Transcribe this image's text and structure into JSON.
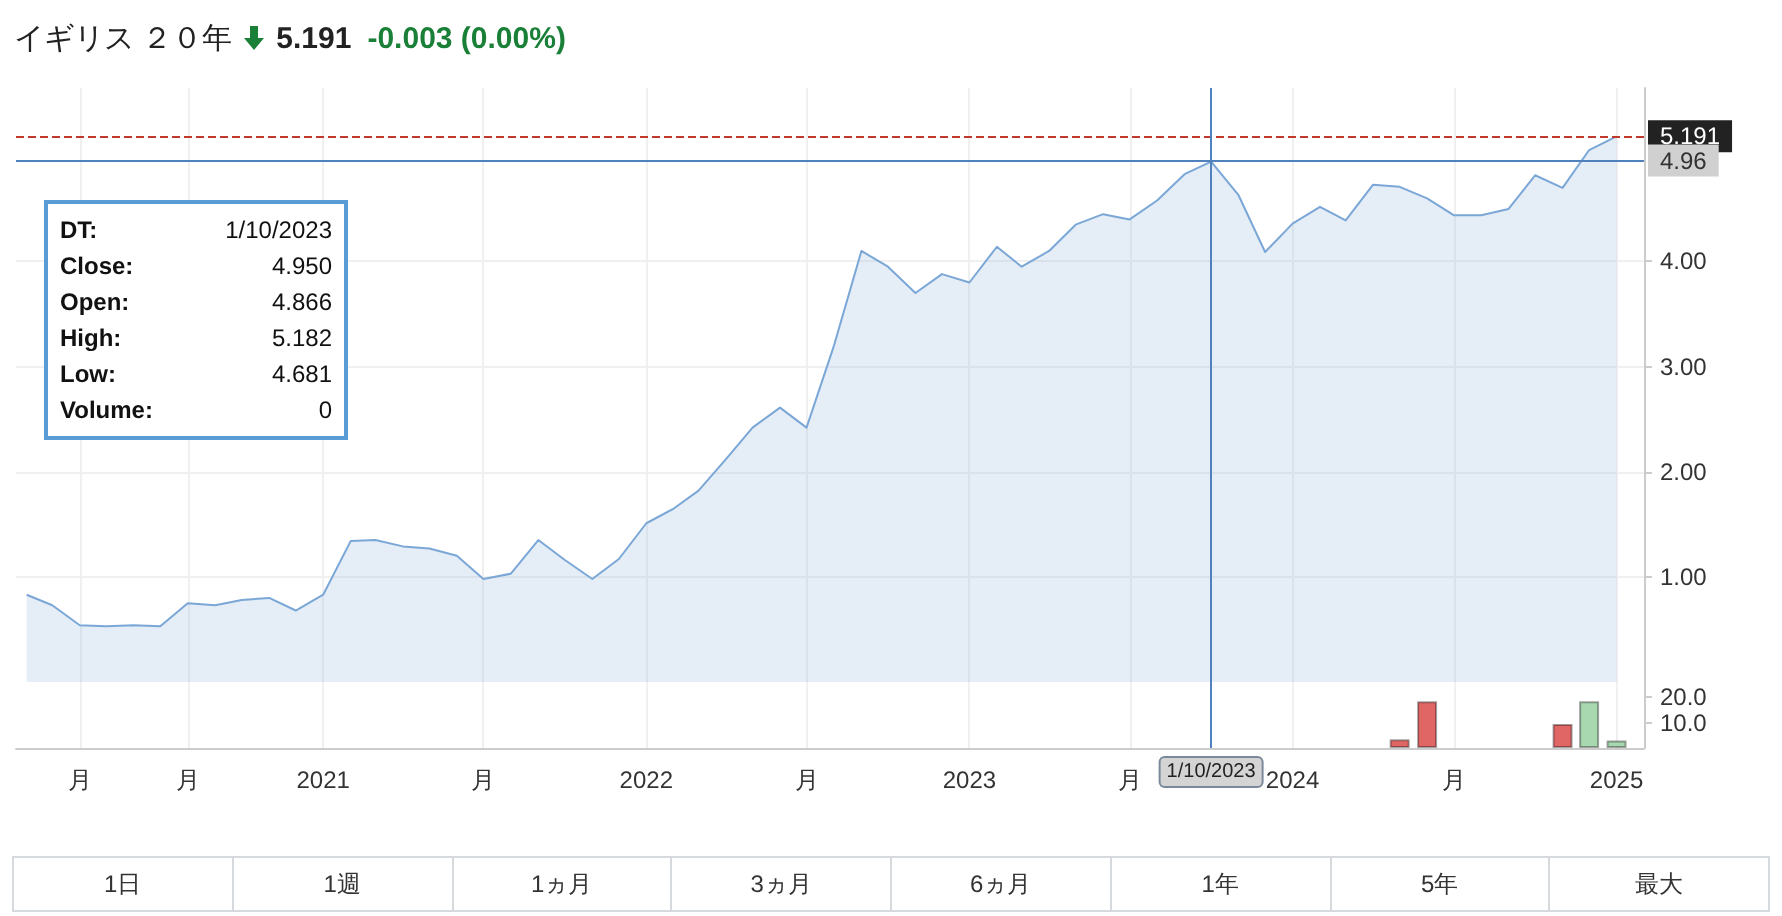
{
  "chart_data": [
    {
      "type": "area",
      "title": "イギリス ２０年",
      "annotations": [
        "5.191",
        "-0.003 (0.00%)",
        "DT:",
        "1/10/2023",
        "Close:",
        "4.950",
        "Open:",
        "4.866",
        "High:",
        "5.182",
        "Low:",
        "4.681",
        "Volume:",
        "0"
      ],
      "x": [
        "2020-02",
        "2020-03",
        "2020-04",
        "2020-05",
        "2020-06",
        "2020-07",
        "2020-08",
        "2020-09",
        "2020-10",
        "2020-11",
        "2020-12",
        "2021-01",
        "2021-02",
        "2021-03",
        "2021-04",
        "2021-05",
        "2021-06",
        "2021-07",
        "2021-08",
        "2021-09",
        "2021-10",
        "2021-11",
        "2021-12",
        "2022-01",
        "2022-02",
        "2022-03",
        "2022-04",
        "2022-05",
        "2022-06",
        "2022-07",
        "2022-08",
        "2022-09",
        "2022-10",
        "2022-11",
        "2022-12",
        "2023-01",
        "2023-02",
        "2023-03",
        "2023-04",
        "2023-05",
        "2023-06",
        "2023-07",
        "2023-08",
        "2023-09",
        "2023-10",
        "2023-11",
        "2023-12",
        "2024-01",
        "2024-02",
        "2024-03",
        "2024-04",
        "2024-05",
        "2024-06",
        "2024-07",
        "2024-08",
        "2024-09",
        "2024-10",
        "2024-11",
        "2024-12",
        "2025-01"
      ],
      "series": [
        {
          "color": "#7ba7d7",
          "values": [
            0.83,
            0.73,
            0.54,
            0.53,
            0.54,
            0.53,
            0.75,
            0.73,
            0.78,
            0.8,
            0.68,
            0.83,
            1.34,
            1.35,
            1.29,
            1.27,
            1.2,
            0.98,
            1.03,
            1.35,
            1.16,
            0.98,
            1.17,
            1.51,
            1.65,
            1.82,
            2.12,
            2.42,
            2.61,
            2.42,
            3.2,
            4.1,
            3.95,
            3.7,
            3.88,
            3.8,
            4.14,
            3.95,
            4.1,
            4.35,
            4.45,
            4.4,
            4.58,
            4.83,
            4.95,
            4.63,
            4.09,
            4.36,
            4.52,
            4.39,
            4.73,
            4.71,
            4.6,
            4.44,
            4.44,
            4.5,
            4.82,
            4.7,
            5.06,
            5.19
          ]
        }
      ],
      "xlim": [
        "2020-01-20",
        "2025-02-01"
      ],
      "xticks": [
        {
          "value": "2020-04",
          "label": null
        },
        {
          "value": "2020-08",
          "label": null
        },
        {
          "value": "2021",
          "label": null
        },
        {
          "value": "2021-07",
          "label": null
        },
        {
          "value": "2022",
          "label": null
        },
        {
          "value": "2022-07",
          "label": null
        },
        {
          "value": "2023",
          "label": null
        },
        {
          "value": "2023-07",
          "label": null
        },
        {
          "value": "2024",
          "label": null
        },
        {
          "value": "2024-07",
          "label": null
        },
        {
          "value": "2025",
          "label": null
        }
      ],
      "ylim": [
        0,
        5.65
      ],
      "yticks": [
        {
          "value": 1,
          "label": "1.00"
        },
        {
          "value": 2,
          "label": "2.00"
        },
        {
          "value": 3,
          "label": "3.00"
        },
        {
          "value": 4,
          "label": "4.00"
        }
      ],
      "ref_lines": [
        {
          "axis": "y",
          "value": 5.191,
          "label": "5.191",
          "color": "#c0392b",
          "line_style": "dashed"
        },
        {
          "axis": "y",
          "value": 4.96,
          "label": "4.96",
          "color": "#4f81bd",
          "line_style": "solid"
        },
        {
          "axis": "x",
          "value": "2023-10",
          "color": "#4f81bd",
          "line_style": "solid"
        }
      ],
      "grid": true,
      "tick_labels": "y"
    },
    {
      "type": "bar",
      "x": [
        "2024-05",
        "2024-06",
        "2024-11",
        "2024-12",
        "2025-01"
      ],
      "values": [
        3.4,
        18.4,
        9.5,
        18.4,
        3.0
      ],
      "colors": [
        "#e06666",
        "#e06666",
        "#e06666",
        "#a8d8b0",
        "#a8d8b0"
      ],
      "xlim": [
        "2020-01-20",
        "2025-02-01"
      ],
      "xticks": [
        {
          "value": "2020-04",
          "label": "月"
        },
        {
          "value": "2020-08",
          "label": "月"
        },
        {
          "value": "2021",
          "label": "2021"
        },
        {
          "value": "2021-07",
          "label": "月"
        },
        {
          "value": "2022",
          "label": "2022"
        },
        {
          "value": "2022-07",
          "label": "月"
        },
        {
          "value": "2023",
          "label": "2023"
        },
        {
          "value": "2023-07",
          "label": "月"
        },
        {
          "value": "2024",
          "label": "2024"
        },
        {
          "value": "2024-07",
          "label": "月"
        },
        {
          "value": "2025",
          "label": "2025"
        }
      ],
      "ylim": [
        0,
        26
      ],
      "yticks": [
        {
          "value": 10,
          "label": "10.0"
        },
        {
          "value": 20,
          "label": "20.0"
        }
      ],
      "ref_lines": [
        {
          "axis": "x",
          "value": "2023-10",
          "label": "1/10/2023",
          "color": "#4f81bd",
          "line_style": "solid"
        }
      ],
      "grid": "x"
    },
    {
      "type": "other",
      "annotations": [
        "1日",
        "1週",
        "1ヵ月",
        "3ヵ月",
        "6ヵ月",
        "1年",
        "5年",
        "最大"
      ]
    }
  ]
}
